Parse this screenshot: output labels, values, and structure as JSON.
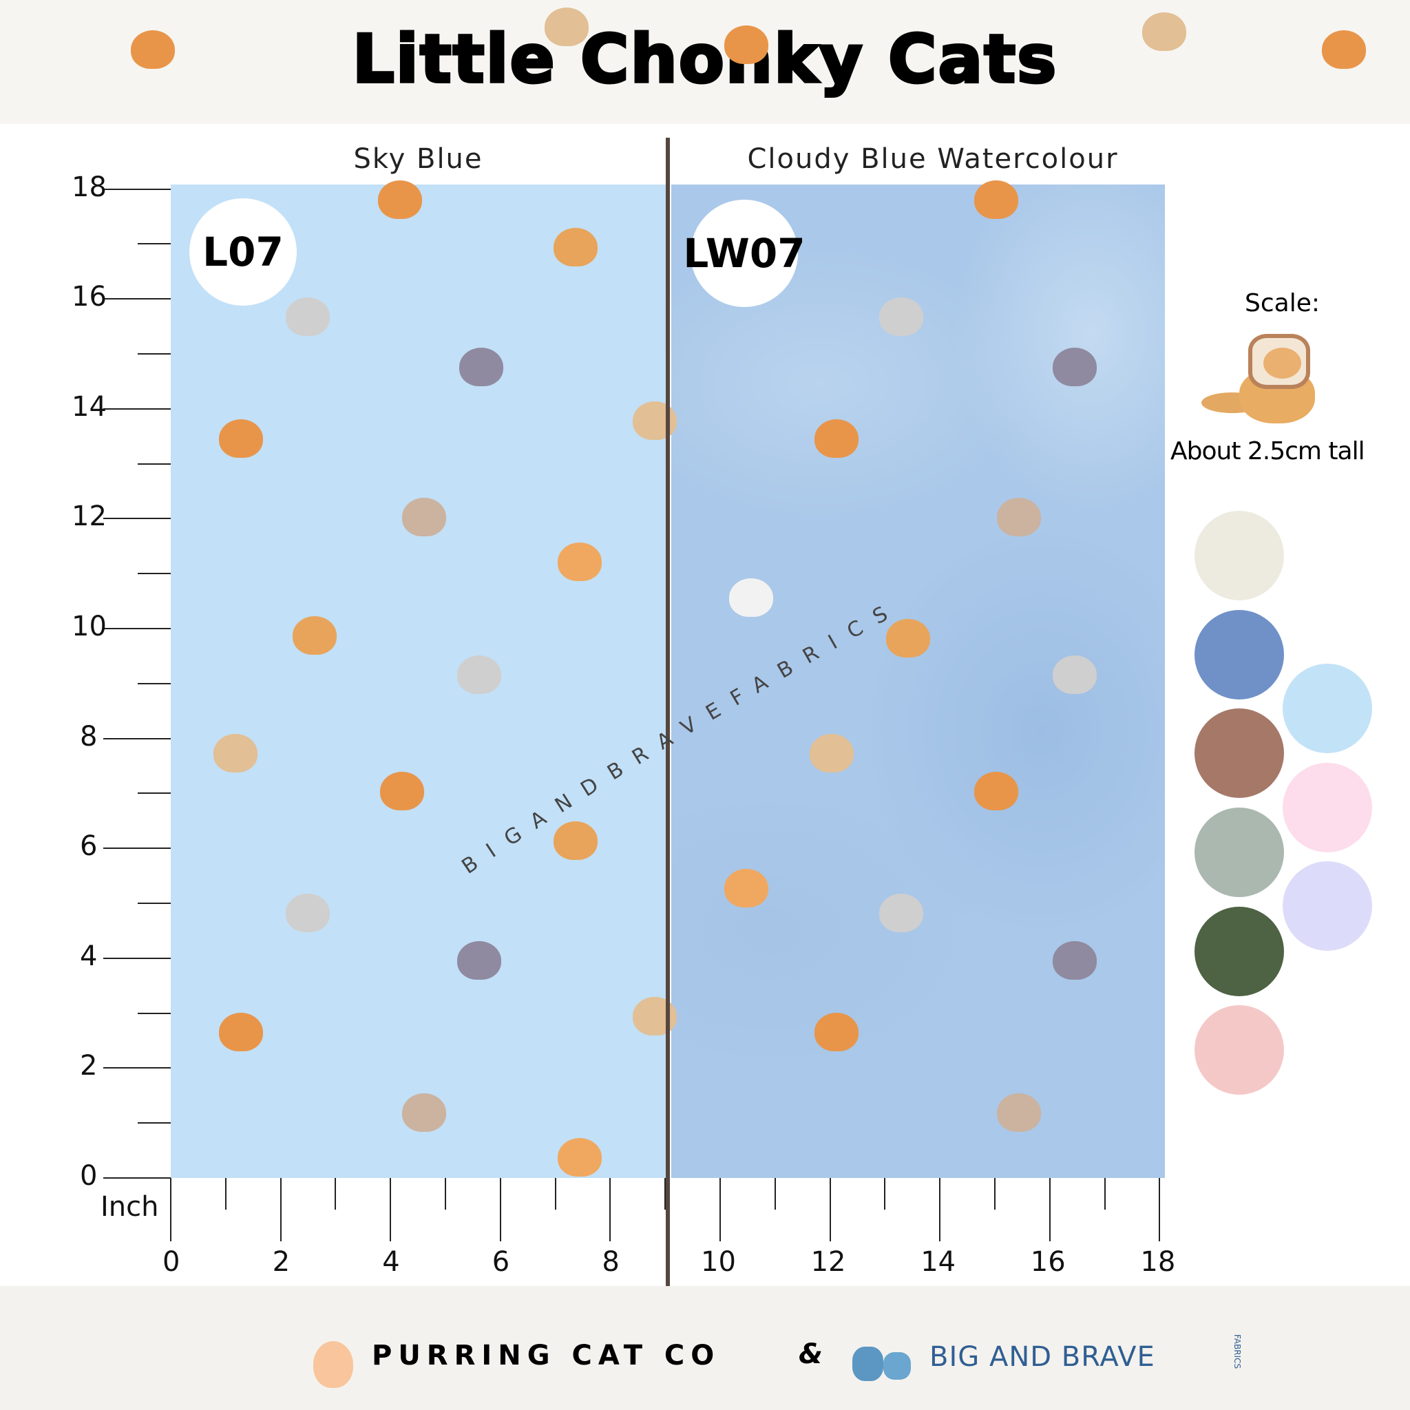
{
  "header": {
    "title": "Little Chonky Cats"
  },
  "panels": [
    {
      "label": "Sky Blue",
      "code": "L07",
      "color": "#c2e0f7"
    },
    {
      "label": "Cloudy Blue Watercolour",
      "code": "LW07",
      "color": "#aac8e9"
    }
  ],
  "axis": {
    "unit": "Inch",
    "y_ticks": [
      "0",
      "2",
      "4",
      "6",
      "8",
      "10",
      "12",
      "14",
      "16",
      "18"
    ],
    "x_ticks": [
      "0",
      "2",
      "4",
      "6",
      "8",
      "10",
      "12",
      "14",
      "16",
      "18"
    ]
  },
  "scale": {
    "label": "Scale:",
    "note": "About 2.5cm tall",
    "icon": "toast-cat-icon"
  },
  "swatches": [
    "#edeae0",
    "#7090c8",
    "#a57868",
    "#aab8b0",
    "#4e6244",
    "#f5c8c8",
    "#c2e2f8",
    "#fddcec",
    "#dcdcfa"
  ],
  "watermark": "BIGANDBRAVEFABRICS",
  "footer": {
    "brand1": "PURRING CAT CO",
    "amp": "&",
    "brand2": "BIG AND BRAVE",
    "brand2_sub": "FABRICS"
  }
}
